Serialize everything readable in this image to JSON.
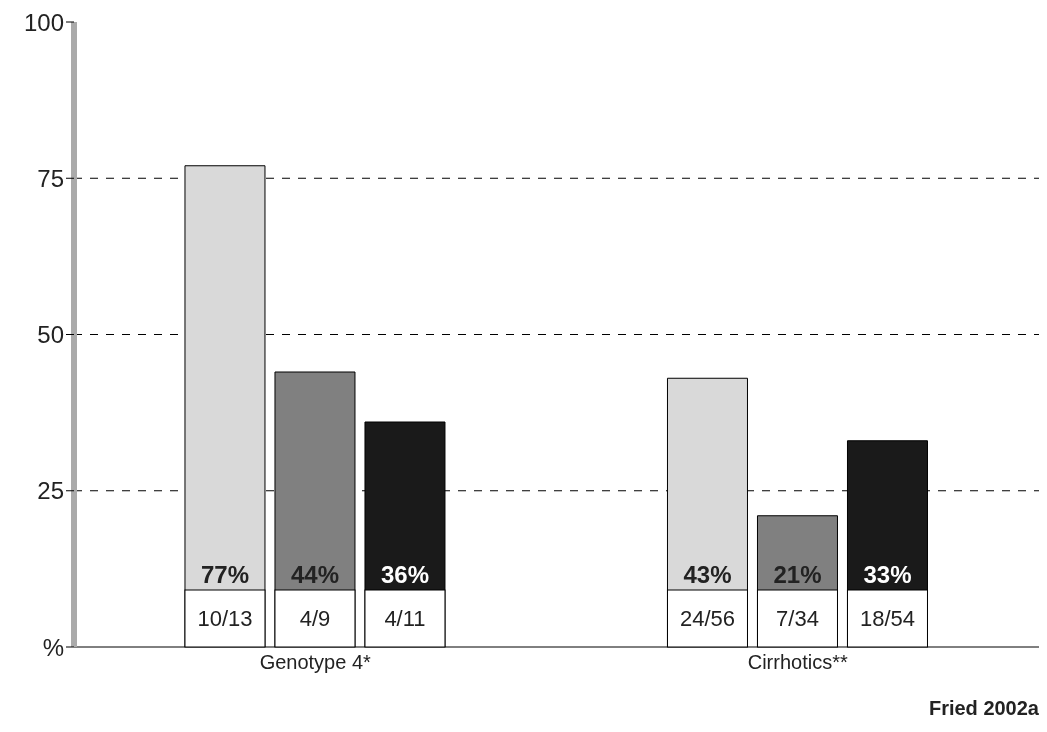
{
  "chart_data": {
    "type": "bar",
    "categories": [
      "Genotype 4*",
      "Cirrhotics**"
    ],
    "series": [
      {
        "color": "#d9d9d9",
        "values": [
          77,
          43
        ],
        "value_labels": [
          "77%",
          "43%"
        ]
      },
      {
        "color": "#808080",
        "values": [
          44,
          21
        ],
        "value_labels": [
          "44%",
          "21%"
        ]
      },
      {
        "color": "#1a1a1a",
        "values": [
          36,
          33
        ],
        "value_labels": [
          "36%",
          "33%"
        ]
      }
    ],
    "ylim": [
      0,
      100
    ],
    "yticks": [
      {
        "value": 0,
        "label": "%"
      },
      25,
      50,
      75,
      100
    ],
    "grid": "y",
    "line_style": "dashed",
    "annotations": [
      "10/13",
      "4/9",
      "4/11",
      "24/56",
      "7/34",
      "18/54",
      "Fried 2002a"
    ]
  }
}
